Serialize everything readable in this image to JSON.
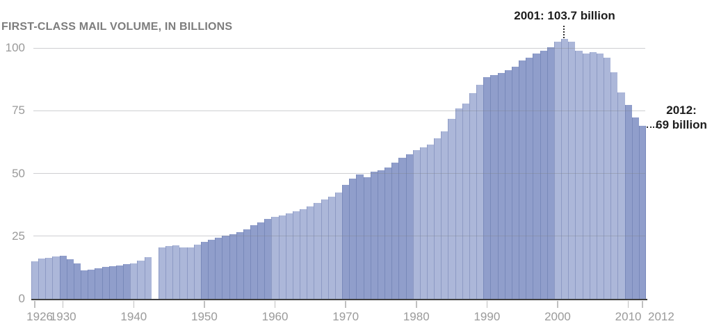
{
  "header": {
    "title": "FIRST-CLASS MAIL VOLUME, IN BILLIONS"
  },
  "chart_data": {
    "type": "bar",
    "title": "FIRST-CLASS MAIL VOLUME, IN BILLIONS",
    "unit": "billions of pieces per year",
    "xlabel": "",
    "ylabel": "",
    "ylim": [
      0,
      107
    ],
    "yticks": [
      0,
      25,
      50,
      75,
      100
    ],
    "xticks": [
      1926,
      1930,
      1940,
      1950,
      1960,
      1970,
      1980,
      1990,
      2000,
      2010,
      2012
    ],
    "grid": true,
    "legend": false,
    "bar_shading_note": "bars alternate light/dark fill by decade; no data bar for 1943",
    "missing_years": [
      1943
    ],
    "years": [
      1926,
      1927,
      1928,
      1929,
      1930,
      1931,
      1932,
      1933,
      1934,
      1935,
      1936,
      1937,
      1938,
      1939,
      1940,
      1941,
      1942,
      1943,
      1944,
      1945,
      1946,
      1947,
      1948,
      1949,
      1950,
      1951,
      1952,
      1953,
      1954,
      1955,
      1956,
      1957,
      1958,
      1959,
      1960,
      1961,
      1962,
      1963,
      1964,
      1965,
      1966,
      1967,
      1968,
      1969,
      1970,
      1971,
      1972,
      1973,
      1974,
      1975,
      1976,
      1977,
      1978,
      1979,
      1980,
      1981,
      1982,
      1983,
      1984,
      1985,
      1986,
      1987,
      1988,
      1989,
      1990,
      1991,
      1992,
      1993,
      1994,
      1995,
      1996,
      1997,
      1998,
      1999,
      2000,
      2001,
      2002,
      2003,
      2004,
      2005,
      2006,
      2007,
      2008,
      2009,
      2010,
      2011,
      2012
    ],
    "values": [
      15.0,
      16.0,
      16.4,
      16.9,
      17.2,
      15.7,
      14.1,
      11.3,
      11.6,
      12.2,
      12.8,
      13.1,
      13.3,
      13.8,
      14.2,
      15.3,
      16.6,
      null,
      20.6,
      21.0,
      21.2,
      20.4,
      20.6,
      21.5,
      22.7,
      23.6,
      24.4,
      25.1,
      25.8,
      26.7,
      27.8,
      29.3,
      30.6,
      31.8,
      32.6,
      33.3,
      34.2,
      34.9,
      35.6,
      36.9,
      38.1,
      39.5,
      40.6,
      42.3,
      45.5,
      48.0,
      49.7,
      48.6,
      50.8,
      51.3,
      52.4,
      54.3,
      56.1,
      57.5,
      59.4,
      60.3,
      61.4,
      64.0,
      66.8,
      71.8,
      76.0,
      77.8,
      82.0,
      85.2,
      88.3,
      89.2,
      90.1,
      91.2,
      92.6,
      95.1,
      96.0,
      97.7,
      98.8,
      100.3,
      102.5,
      103.7,
      102.4,
      99.0,
      97.7,
      98.4,
      97.7,
      96.1,
      90.3,
      82.3,
      77.4,
      72.3,
      69.0
    ],
    "annotations": [
      {
        "year": 2001,
        "value": 103.7,
        "text": "2001: 103.7 billion"
      },
      {
        "year": 2012,
        "value": 69,
        "text": "2012: 69 billion",
        "line1": "2012:",
        "line2": "69 billion"
      }
    ],
    "colors": {
      "bar_light": "#acb7d9",
      "bar_dark": "#909ecb",
      "bar_edge": "rgba(70,90,150,0.30)",
      "gridline": "rgba(125,128,138,0.38)",
      "axis": "#3f3f3f",
      "tick": "#c0c0c0",
      "tick_label": "#9a9a9a",
      "title": "#7d7d7d",
      "annotation": "#1d1d1d"
    }
  }
}
